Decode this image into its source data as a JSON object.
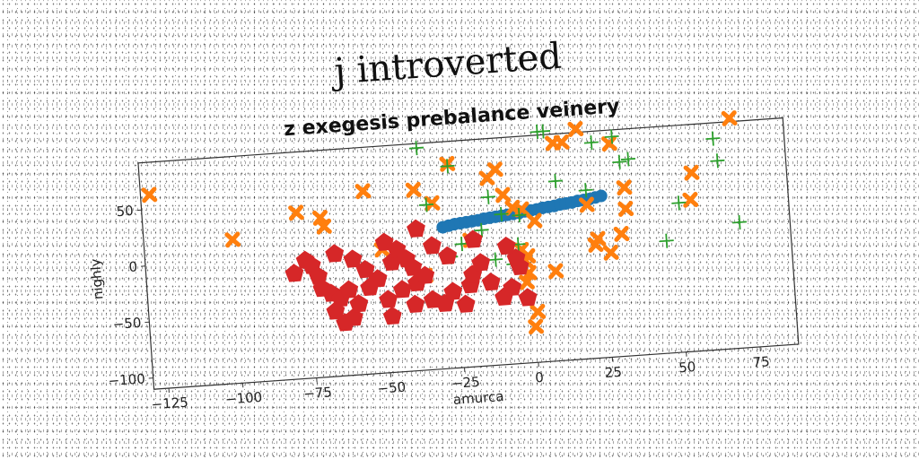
{
  "chart_data": {
    "type": "scatter",
    "suptitle": "j introverted",
    "title": "z exegesis prebalance veinery",
    "xlabel": "amurca",
    "ylabel": "nighly",
    "xlim": [
      -130,
      88
    ],
    "ylim": [
      -110,
      92
    ],
    "xticks": [
      -125,
      -100,
      -75,
      -50,
      -25,
      0,
      25,
      50,
      75
    ],
    "yticks": [
      -100,
      -50,
      0,
      50
    ],
    "grid": false,
    "series": [
      {
        "marker": "circle",
        "color": "#1f77b4",
        "points": [
          [
            -29,
            16
          ],
          [
            -27,
            17
          ],
          [
            -25,
            18
          ],
          [
            -23,
            18.5
          ],
          [
            -21,
            19
          ],
          [
            -19,
            19.5
          ],
          [
            -17,
            20
          ],
          [
            -15,
            21
          ],
          [
            -13,
            21.5
          ],
          [
            -11,
            22
          ],
          [
            -9,
            22.5
          ],
          [
            -7,
            23
          ],
          [
            -5,
            23.5
          ],
          [
            -3,
            24
          ],
          [
            -1,
            25
          ],
          [
            1,
            25.5
          ],
          [
            3,
            26
          ],
          [
            5,
            27
          ],
          [
            7,
            27.5
          ],
          [
            9,
            28
          ],
          [
            11,
            29
          ],
          [
            13,
            29.5
          ],
          [
            15,
            30
          ],
          [
            17,
            31
          ],
          [
            19,
            31.5
          ],
          [
            21,
            32
          ],
          [
            23,
            33
          ],
          [
            25,
            34
          ]
        ]
      },
      {
        "marker": "x",
        "color": "#ff7f0e",
        "points": [
          [
            -127,
            63
          ],
          [
            -100,
            18
          ],
          [
            -78,
            38
          ],
          [
            -70,
            32
          ],
          [
            -69,
            24
          ],
          [
            -55,
            53
          ],
          [
            -38,
            51
          ],
          [
            -32,
            38
          ],
          [
            -26,
            72
          ],
          [
            -13,
            57
          ],
          [
            -10,
            64
          ],
          [
            -8,
            41
          ],
          [
            -5,
            29
          ],
          [
            -2,
            27
          ],
          [
            2,
            16
          ],
          [
            -3,
            -9
          ],
          [
            -2,
            -19
          ],
          [
            -1,
            -30
          ],
          [
            -2,
            -38
          ],
          [
            -1,
            -15
          ],
          [
            0,
            -78
          ],
          [
            1,
            -65
          ],
          [
            8,
            -30
          ],
          [
            5,
            98
          ],
          [
            10,
            84
          ],
          [
            13,
            84
          ],
          [
            18,
            95
          ],
          [
            20,
            27
          ],
          [
            22,
            -9
          ],
          [
            23,
            -4
          ],
          [
            27,
            -17
          ],
          [
            29,
            80
          ],
          [
            31,
            -1
          ],
          [
            33,
            21
          ],
          [
            33,
            40
          ],
          [
            55,
            25
          ],
          [
            56,
            49
          ],
          [
            70,
            95
          ],
          [
            -50,
            0
          ],
          [
            -36,
            -26
          ],
          [
            -20,
            3
          ]
        ]
      },
      {
        "marker": "plus",
        "color": "#2ca02c",
        "points": [
          [
            -36,
            88
          ],
          [
            -26,
            70
          ],
          [
            -34,
            37
          ],
          [
            -13,
            40
          ],
          [
            -9,
            24
          ],
          [
            -3,
            22
          ],
          [
            -16,
            11
          ],
          [
            -23,
            0
          ],
          [
            -27,
            -11
          ],
          [
            -12,
            -16
          ],
          [
            -6,
            -21
          ],
          [
            -4,
            -4
          ],
          [
            5,
            95
          ],
          [
            7,
            95
          ],
          [
            10,
            50
          ],
          [
            20,
            40
          ],
          [
            23,
            82
          ],
          [
            30,
            86
          ],
          [
            32,
            63
          ],
          [
            35,
            65
          ],
          [
            46,
            -10
          ],
          [
            51,
            23
          ],
          [
            58,
            100
          ],
          [
            62,
            100
          ],
          [
            64,
            78
          ],
          [
            65,
            58
          ],
          [
            71,
            2
          ]
        ]
      },
      {
        "marker": "pentagon",
        "color": "#d62728",
        "points": [
          [
            -80,
            -16
          ],
          [
            -76,
            -5
          ],
          [
            -74,
            -10
          ],
          [
            -72,
            -20
          ],
          [
            -71,
            -31
          ],
          [
            -68,
            -36
          ],
          [
            -65,
            -41
          ],
          [
            -67,
            -52
          ],
          [
            -64,
            -63
          ],
          [
            -61,
            -59
          ],
          [
            -59,
            -47
          ],
          [
            -62,
            -34
          ],
          [
            -66,
            -1
          ],
          [
            -60,
            -7
          ],
          [
            -56,
            -17
          ],
          [
            -52,
            -26
          ],
          [
            -49,
            -45
          ],
          [
            -48,
            -60
          ],
          [
            -47,
            -12
          ],
          [
            -49,
            6
          ],
          [
            -45,
            -1
          ],
          [
            -42,
            -10
          ],
          [
            -40,
            -18
          ],
          [
            -39,
            -32
          ],
          [
            -40,
            -51
          ],
          [
            -34,
            -48
          ],
          [
            -36,
            -26
          ],
          [
            -33,
            0
          ],
          [
            -30,
            -52
          ],
          [
            -27,
            -42
          ],
          [
            -23,
            -54
          ],
          [
            -21,
            -37
          ],
          [
            -20,
            -28
          ],
          [
            -17,
            -18
          ],
          [
            -14,
            -36
          ],
          [
            -10,
            -50
          ],
          [
            -7,
            -42
          ],
          [
            -4,
            -24
          ],
          [
            -5,
            -16
          ],
          [
            -8,
            -5
          ],
          [
            -2,
            -52
          ],
          [
            -28,
            -10
          ],
          [
            -55,
            -33
          ],
          [
            -44,
            -37
          ],
          [
            -38,
            16
          ],
          [
            -19,
            3
          ]
        ]
      }
    ]
  }
}
